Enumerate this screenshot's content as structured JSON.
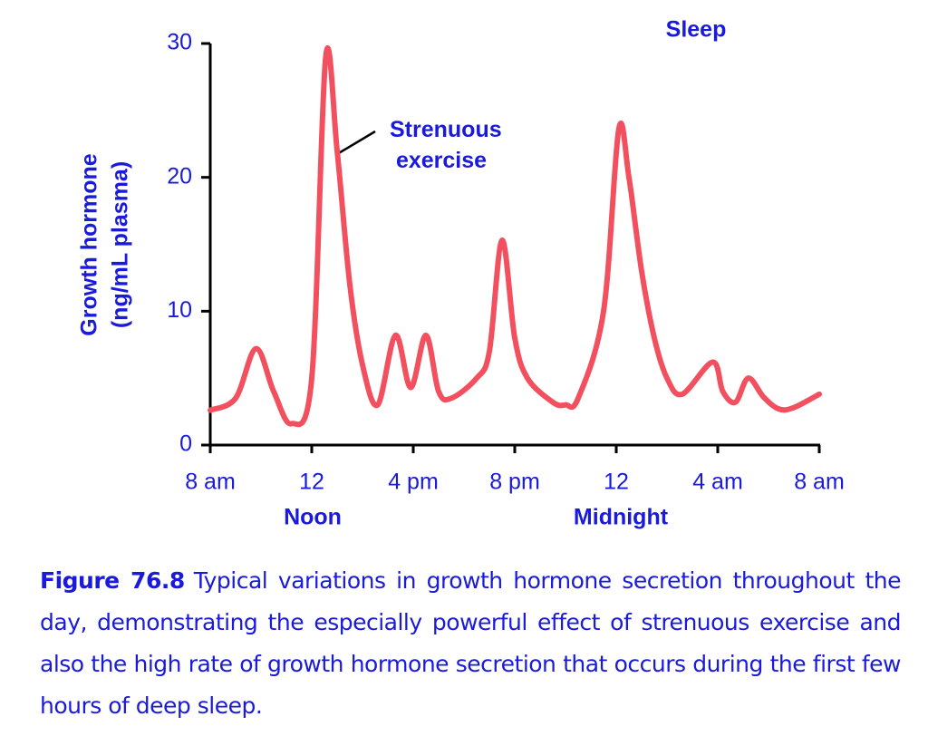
{
  "chart_data": {
    "type": "line",
    "y_label": [
      "Growth hormone",
      "(ng/mL plasma)"
    ],
    "annotations": {
      "sleep": "Sleep",
      "exercise": "Strenuous exercise",
      "noon": "Noon",
      "midnight": "Midnight"
    },
    "x": [
      0,
      1,
      1.8,
      2.5,
      3.2,
      4,
      4.55,
      5,
      5.5,
      6,
      6.6,
      7.3,
      7.9,
      8.5,
      9,
      9.5,
      10.5,
      11,
      11.5,
      12,
      12.5,
      13.5,
      14,
      14.5,
      15.5,
      16.1,
      16.5,
      17,
      17.5,
      18,
      18.6,
      19.8,
      20.2,
      20.7,
      21.2,
      21.8,
      22.4,
      23,
      24
    ],
    "series": [
      {
        "name": "Growth hormone",
        "color": "#f2505f",
        "values": [
          2.6,
          3.5,
          7.2,
          4,
          1.6,
          5,
          29,
          22,
          12,
          6,
          3,
          8.2,
          4.3,
          8.2,
          4,
          3.5,
          5,
          7,
          15.3,
          8,
          5,
          3.2,
          3,
          3.5,
          10,
          23.6,
          20,
          13,
          8,
          5,
          3.8,
          6.2,
          4,
          3.2,
          5,
          3.6,
          2.7,
          2.8,
          3.8
        ]
      }
    ],
    "xlim": [
      0,
      24
    ],
    "xticks": [
      {
        "value": 0,
        "label": "8 am"
      },
      {
        "value": 4,
        "label": "12"
      },
      {
        "value": 8,
        "label": "4 pm"
      },
      {
        "value": 12,
        "label": "8 pm"
      },
      {
        "value": 16,
        "label": "12"
      },
      {
        "value": 20,
        "label": "4 am"
      },
      {
        "value": 24,
        "label": "8 am"
      }
    ],
    "ylim": [
      0,
      30
    ],
    "yticks": [
      0,
      10,
      20,
      30
    ],
    "axis_color": "#1a1adc"
  },
  "caption": {
    "label": "Figure 76.8",
    "text": "Typical variations in growth hormone secretion throughout the day, demonstrating the especially powerful effect of strenuous exercise and also the high rate of growth hormone secretion that occurs during the first few hours of deep sleep."
  }
}
